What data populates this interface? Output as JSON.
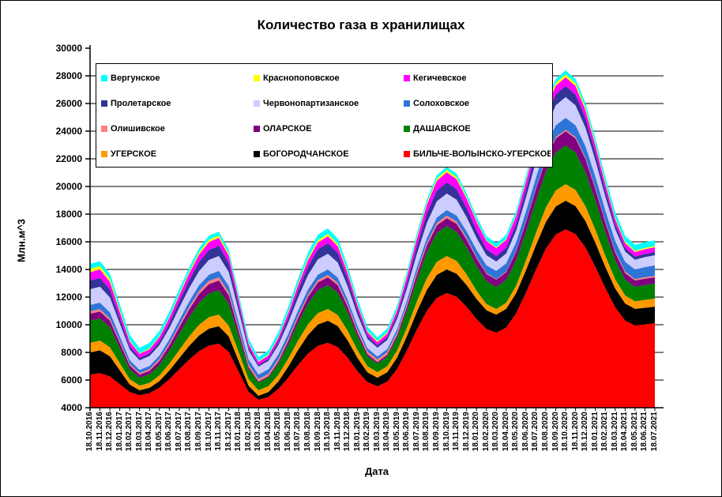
{
  "title": "Количество газа в хранилищах",
  "axes": {
    "y_title": "Млн.м^3",
    "x_title": "Дата",
    "y_min": 4000,
    "y_max": 30000,
    "y_step": 2000
  },
  "chart_data": {
    "type": "area",
    "stacked": true,
    "title": "Количество газа в хранилищах",
    "xlabel": "Дата",
    "ylabel": "Млн.м^3",
    "ylim": [
      4000,
      30000
    ],
    "grid": "horizontal every 2000, black",
    "legend_position": "inside top-left, 3 columns, white box with black border",
    "legend_order": [
      "Вергунское",
      "Краснопоповское",
      "Кегичевское",
      "Пролетарское",
      "Червонопартизанское",
      "Солоховское",
      "Олишивское",
      "ОЛАРСКОЕ",
      "ДАШАВСКОЕ",
      "УГЕРСКОЕ",
      "БОГОРОДЧАНСКОЕ",
      "БИЛЬЧЕ-ВОЛЫНСКО-УГЕРСКОЕ"
    ],
    "categories": [
      "18.10.2016",
      "18.11.2016",
      "18.12.2016",
      "18.01.2017",
      "18.02.2017",
      "18.03.2017",
      "18.04.2017",
      "18.05.2017",
      "18.06.2017",
      "18.07.2017",
      "18.08.2017",
      "18.09.2017",
      "18.10.2017",
      "18.11.2017",
      "18.12.2017",
      "18.01.2018",
      "18.02.2018",
      "18.03.2018",
      "18.04.2018",
      "18.05.2018",
      "18.06.2018",
      "18.07.2018",
      "18.08.2018",
      "18.09.2018",
      "18.10.2018",
      "18.11.2018",
      "18.12.2018",
      "18.01.2019",
      "18.02.2019",
      "18.03.2019",
      "18.04.2019",
      "18.05.2019",
      "18.06.2019",
      "18.07.2019",
      "18.08.2019",
      "18.09.2019",
      "18.10.2019",
      "18.11.2019",
      "18.12.2019",
      "18.01.2020",
      "18.02.2020",
      "18.03.2020",
      "18.04.2020",
      "18.05.2020",
      "18.06.2020",
      "18.07.2020",
      "18.08.2020",
      "18.09.2020",
      "18.10.2020",
      "18.11.2020",
      "18.12.2020",
      "18.01.2021",
      "18.02.2021",
      "18.03.2021",
      "18.04.2021",
      "18.05.2021",
      "18.06.2021",
      "18.07.2021"
    ],
    "series_note": "values are per-facility volumes (Mln m^3), stacked bottom-to-top in listed order; estimated from pixels",
    "series": [
      {
        "name": "БИЛЬЧЕ-ВОЛЫНСКО-УГЕРСКОЕ",
        "color": "#FF0000",
        "values": [
          6400,
          6500,
          6270,
          5710,
          5140,
          4910,
          5050,
          5450,
          6060,
          6770,
          7480,
          8090,
          8490,
          8630,
          8040,
          6600,
          5160,
          4570,
          4780,
          5350,
          6170,
          7090,
          7920,
          8480,
          8690,
          8390,
          7610,
          6630,
          5850,
          5550,
          5890,
          6820,
          8170,
          9670,
          11020,
          11950,
          12290,
          12020,
          11300,
          10420,
          9700,
          9430,
          9800,
          10830,
          12340,
          13990,
          15500,
          16530,
          16900,
          16550,
          15590,
          14200,
          12650,
          11260,
          10300,
          9950,
          10030,
          10110
        ]
      },
      {
        "name": "БОГОРОДЧАНСКОЕ",
        "color": "#000000",
        "values": [
          1600,
          1650,
          1460,
          1000,
          540,
          350,
          390,
          480,
          630,
          810,
          980,
          1130,
          1230,
          1260,
          1120,
          780,
          430,
          290,
          360,
          540,
          800,
          1090,
          1350,
          1540,
          1600,
          1510,
          1260,
          960,
          710,
          620,
          680,
          830,
          1040,
          1290,
          1510,
          1660,
          1710,
          1670,
          1570,
          1450,
          1350,
          1310,
          1350,
          1450,
          1610,
          1770,
          1930,
          2030,
          2070,
          2030,
          1910,
          1730,
          1540,
          1360,
          1240,
          1200,
          1200,
          1200
        ]
      },
      {
        "name": "УГЕРСКОЕ",
        "color": "#FF9900",
        "values": [
          690,
          700,
          650,
          520,
          390,
          340,
          360,
          410,
          500,
          600,
          690,
          780,
          830,
          850,
          780,
          630,
          470,
          400,
          420,
          490,
          580,
          680,
          770,
          830,
          850,
          810,
          700,
          560,
          440,
          400,
          430,
          510,
          620,
          750,
          860,
          940,
          970,
          920,
          770,
          600,
          450,
          400,
          440,
          550,
          710,
          890,
          1050,
          1160,
          1200,
          1170,
          1080,
          950,
          800,
          670,
          580,
          550,
          570,
          580
        ]
      },
      {
        "name": "ДАШАВСКОЕ",
        "color": "#008000",
        "values": [
          1600,
          1600,
          1450,
          1090,
          720,
          570,
          620,
          750,
          940,
          1170,
          1400,
          1600,
          1720,
          1770,
          1600,
          1170,
          750,
          570,
          630,
          790,
          1020,
          1270,
          1500,
          1660,
          1720,
          1620,
          1340,
          1010,
          730,
          630,
          710,
          920,
          1230,
          1570,
          1880,
          2090,
          2170,
          2120,
          1970,
          1800,
          1650,
          1600,
          1660,
          1830,
          2070,
          2330,
          2570,
          2740,
          2800,
          2710,
          2470,
          2120,
          1730,
          1380,
          1140,
          1050,
          1070,
          1080
        ]
      },
      {
        "name": "ОЛАРСКОЕ",
        "color": "#800080",
        "values": [
          510,
          510,
          470,
          370,
          270,
          230,
          250,
          300,
          370,
          460,
          550,
          620,
          670,
          690,
          600,
          380,
          150,
          60,
          90,
          160,
          260,
          370,
          470,
          550,
          570,
          530,
          410,
          270,
          150,
          110,
          130,
          200,
          290,
          390,
          480,
          550,
          570,
          570,
          550,
          540,
          530,
          520,
          550,
          620,
          720,
          830,
          930,
          1010,
          1030,
          1000,
          920,
          800,
          680,
          560,
          480,
          450,
          460,
          460
        ]
      },
      {
        "name": "Олишивское",
        "color": "#FF8080",
        "values": [
          170,
          170,
          160,
          140,
          120,
          110,
          120,
          130,
          150,
          170,
          190,
          210,
          230,
          230,
          220,
          200,
          180,
          170,
          170,
          170,
          170,
          170,
          170,
          170,
          170,
          170,
          170,
          180,
          180,
          180,
          180,
          180,
          180,
          180,
          180,
          180,
          180,
          170,
          140,
          100,
          60,
          50,
          50,
          60,
          70,
          90,
          100,
          110,
          110,
          110,
          110,
          110,
          100,
          100,
          100,
          100,
          110,
          110
        ]
      },
      {
        "name": "Солоховское",
        "color": "#2E75D8",
        "values": [
          460,
          470,
          440,
          350,
          270,
          230,
          240,
          260,
          300,
          350,
          390,
          430,
          450,
          460,
          440,
          400,
          360,
          340,
          340,
          350,
          360,
          380,
          390,
          400,
          400,
          380,
          340,
          280,
          240,
          220,
          230,
          250,
          290,
          330,
          370,
          390,
          400,
          420,
          460,
          520,
          560,
          580,
          590,
          630,
          690,
          750,
          810,
          850,
          860,
          850,
          830,
          800,
          760,
          730,
          710,
          700,
          730,
          750
        ]
      },
      {
        "name": "Червонопартизанское",
        "color": "#CCCCFF",
        "values": [
          1140,
          1150,
          1080,
          920,
          760,
          690,
          710,
          750,
          810,
          890,
          960,
          1020,
          1070,
          1080,
          1010,
          830,
          640,
          570,
          600,
          680,
          790,
          920,
          1030,
          1110,
          1140,
          1090,
          960,
          810,
          680,
          630,
          660,
          740,
          850,
          980,
          1090,
          1170,
          1200,
          1150,
          1020,
          860,
          730,
          680,
          720,
          830,
          1000,
          1180,
          1340,
          1450,
          1490,
          1450,
          1340,
          1180,
          1010,
          850,
          740,
          700,
          720,
          740
        ]
      },
      {
        "name": "Пролетарское",
        "color": "#333399",
        "values": [
          630,
          640,
          570,
          410,
          240,
          170,
          190,
          250,
          350,
          460,
          560,
          660,
          720,
          740,
          650,
          430,
          210,
          120,
          150,
          240,
          370,
          510,
          630,
          720,
          750,
          700,
          550,
          370,
          230,
          170,
          200,
          290,
          420,
          560,
          680,
          770,
          800,
          760,
          660,
          540,
          440,
          400,
          420,
          480,
          560,
          640,
          730,
          780,
          800,
          770,
          690,
          580,
          450,
          340,
          260,
          230,
          230,
          230
        ]
      },
      {
        "name": "Кегичевское",
        "color": "#FF00FF",
        "values": [
          600,
          610,
          560,
          450,
          340,
          290,
          300,
          330,
          380,
          440,
          490,
          540,
          570,
          580,
          530,
          400,
          270,
          220,
          240,
          280,
          330,
          400,
          460,
          500,
          510,
          480,
          410,
          330,
          260,
          230,
          260,
          330,
          430,
          540,
          640,
          720,
          740,
          720,
          680,
          630,
          590,
          570,
          570,
          580,
          590,
          610,
          620,
          630,
          630,
          620,
          570,
          510,
          450,
          390,
          350,
          330,
          340,
          340
        ]
      },
      {
        "name": "Краснопоповское",
        "color": "#FFFF00",
        "values": [
          250,
          250,
          220,
          150,
          80,
          50,
          60,
          70,
          90,
          110,
          130,
          150,
          170,
          170,
          150,
          110,
          70,
          50,
          60,
          70,
          100,
          120,
          150,
          160,
          170,
          160,
          140,
          110,
          90,
          80,
          90,
          100,
          120,
          140,
          150,
          170,
          170,
          160,
          130,
          100,
          70,
          60,
          70,
          90,
          120,
          160,
          190,
          210,
          220,
          210,
          200,
          170,
          150,
          120,
          110,
          100,
          100,
          100
        ]
      },
      {
        "name": "Вергунское",
        "color": "#00FFFF",
        "values": [
          350,
          350,
          360,
          380,
          390,
          400,
          400,
          380,
          360,
          340,
          320,
          300,
          290,
          280,
          280,
          290,
          300,
          300,
          310,
          320,
          340,
          360,
          380,
          400,
          400,
          390,
          360,
          320,
          280,
          270,
          270,
          260,
          250,
          250,
          240,
          230,
          230,
          240,
          250,
          270,
          280,
          290,
          290,
          290,
          290,
          290,
          290,
          290,
          290,
          300,
          310,
          340,
          370,
          400,
          410,
          420,
          420,
          410
        ]
      }
    ]
  }
}
